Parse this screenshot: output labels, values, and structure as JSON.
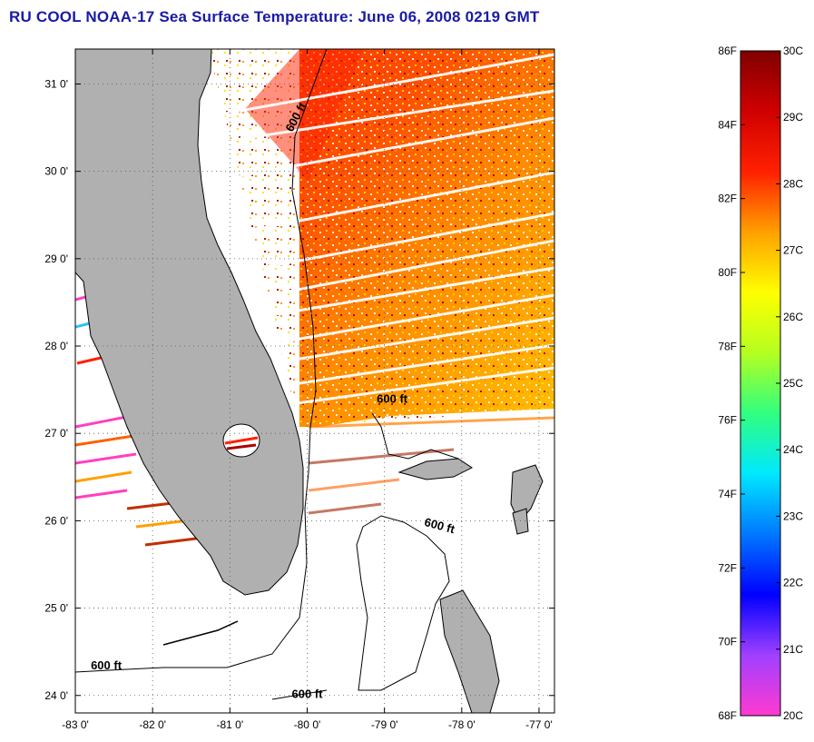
{
  "title": "RU COOL  NOAA-17  Sea Surface Temperature:  June 06, 2008 0219 GMT",
  "map": {
    "lon_range": [
      -83,
      -76.8
    ],
    "lat_range": [
      23.8,
      31.4
    ],
    "x_ticks": [
      "-83 0'",
      "-82 0'",
      "-81 0'",
      "-80 0'",
      "-79 0'",
      "-78 0'",
      "-77 0'"
    ],
    "x_tick_values": [
      -83,
      -82,
      -81,
      -80,
      -79,
      -78,
      -77
    ],
    "y_ticks": [
      "31 0'",
      "30 0'",
      "29 0'",
      "28 0'",
      "27 0'",
      "26 0'",
      "25 0'",
      "24 0'"
    ],
    "y_tick_values": [
      31,
      30,
      29,
      28,
      27,
      26,
      25,
      24
    ],
    "grid": "dotted",
    "land_color": "#b0b0b0",
    "contour_labels": [
      {
        "text": "600 ft",
        "lon": -80.1,
        "lat": 30.6
      },
      {
        "text": "600 ft",
        "lon": -78.9,
        "lat": 27.35
      },
      {
        "text": "600 ft",
        "lon": -78.3,
        "lat": 25.9
      },
      {
        "text": "600 ft",
        "lon": -82.6,
        "lat": 24.3
      },
      {
        "text": "600 ft",
        "lon": -80.0,
        "lat": 23.97
      }
    ]
  },
  "colorbar": {
    "f_labels": [
      "86F",
      "84F",
      "82F",
      "80F",
      "78F",
      "76F",
      "74F",
      "72F",
      "70F",
      "68F"
    ],
    "c_labels": [
      "30C",
      "29C",
      "28C",
      "27C",
      "26C",
      "25C",
      "24C",
      "23C",
      "22C",
      "21C",
      "20C"
    ],
    "range_f": [
      68,
      86
    ],
    "colors": [
      "#ff3ad0",
      "#a040ff",
      "#0000ff",
      "#0078ff",
      "#00e8ff",
      "#30ff80",
      "#b4ff20",
      "#ffff00",
      "#ffa000",
      "#ff2000",
      "#d00000",
      "#800000"
    ]
  }
}
